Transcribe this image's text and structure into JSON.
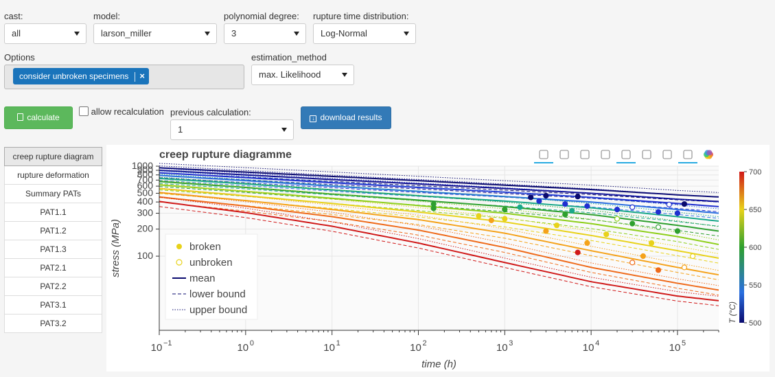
{
  "controls": {
    "cast": {
      "label": "cast:",
      "value": "all"
    },
    "model": {
      "label": "model:",
      "value": "larson_miller"
    },
    "degree": {
      "label": "polynomial degree:",
      "value": "3"
    },
    "distribution": {
      "label": "rupture time distribution:",
      "value": "Log-Normal"
    },
    "options": {
      "label": "Options",
      "chip": "consider unbroken specimens",
      "chip_remove": "×"
    },
    "estimation": {
      "label": "estimation_method",
      "value": "max. Likelihood"
    },
    "calculate_label": "calculate",
    "allow_recalc_label": "allow recalculation",
    "previous": {
      "label": "previous calculation:",
      "value": "1"
    },
    "download_label": "download results"
  },
  "tabs": [
    {
      "label": "creep rupture diagram",
      "active": true
    },
    {
      "label": "rupture deformation"
    },
    {
      "label": "Summary PATs"
    },
    {
      "label": "PAT1.1"
    },
    {
      "label": "PAT1.2"
    },
    {
      "label": "PAT1.3"
    },
    {
      "label": "PAT2.1"
    },
    {
      "label": "PAT2.2"
    },
    {
      "label": "PAT3.1"
    },
    {
      "label": "PAT3.2"
    }
  ],
  "toolbar": [
    "pan-icon",
    "box-zoom-icon",
    "box-select-icon",
    "lasso-icon",
    "tap-icon",
    "reset-icon",
    "save-icon",
    "hover-icon",
    "bokeh-logo-icon"
  ],
  "chart_data": {
    "type": "line",
    "title": "creep rupture diagramme",
    "xlabel": "time (h)",
    "ylabel": "stress (MPa)",
    "xscale": "log",
    "yscale": "log",
    "xlim": [
      0.1,
      300000
    ],
    "ylim": [
      15,
      1000
    ],
    "x_ticks": [
      "10^−1",
      "10^0",
      "10^1",
      "10^2",
      "10^3",
      "10^4",
      "10^5"
    ],
    "y_ticks": [
      "1000",
      "900",
      "800",
      "700",
      "600",
      "500",
      "400",
      "300",
      "200",
      "100"
    ],
    "grid": true,
    "legend_position": "bottom-left",
    "legend": [
      {
        "label": "broken",
        "kind": "filled-circle"
      },
      {
        "label": "unbroken",
        "kind": "open-circle"
      },
      {
        "label": "mean",
        "kind": "solid-line"
      },
      {
        "label": "lower bound",
        "kind": "dashed-line"
      },
      {
        "label": "upper bound",
        "kind": "dotted-line"
      }
    ],
    "colorbar": {
      "title": "T (°C)",
      "range": [
        500,
        700
      ],
      "ticks": [
        "700",
        "650",
        "600",
        "550",
        "500"
      ]
    },
    "temperature_curves": [
      {
        "T": 500,
        "color": "#0a0a6e",
        "mean": [
          [
            0.1,
            960
          ],
          [
            1,
            860
          ],
          [
            10,
            770
          ],
          [
            100,
            690
          ],
          [
            1000,
            615
          ],
          [
            10000,
            550
          ],
          [
            100000,
            480
          ],
          [
            300000,
            455
          ]
        ]
      },
      {
        "T": 520,
        "color": "#10108f",
        "mean": [
          [
            0.1,
            900
          ],
          [
            1,
            800
          ],
          [
            10,
            710
          ],
          [
            100,
            635
          ],
          [
            1000,
            565
          ],
          [
            10000,
            500
          ],
          [
            100000,
            430
          ],
          [
            300000,
            405
          ]
        ]
      },
      {
        "T": 540,
        "color": "#1f2fd0",
        "mean": [
          [
            0.1,
            845
          ],
          [
            1,
            745
          ],
          [
            10,
            655
          ],
          [
            100,
            580
          ],
          [
            1000,
            515
          ],
          [
            10000,
            450
          ],
          [
            100000,
            385
          ],
          [
            300000,
            355
          ]
        ]
      },
      {
        "T": 560,
        "color": "#2a6fe0",
        "mean": [
          [
            0.1,
            790
          ],
          [
            1,
            690
          ],
          [
            10,
            600
          ],
          [
            100,
            525
          ],
          [
            1000,
            460
          ],
          [
            10000,
            400
          ],
          [
            100000,
            330
          ],
          [
            300000,
            300
          ]
        ]
      },
      {
        "T": 580,
        "color": "#1aa88a",
        "mean": [
          [
            0.1,
            730
          ],
          [
            1,
            635
          ],
          [
            10,
            545
          ],
          [
            100,
            470
          ],
          [
            1000,
            410
          ],
          [
            10000,
            345
          ],
          [
            100000,
            275
          ],
          [
            300000,
            245
          ]
        ]
      },
      {
        "T": 600,
        "color": "#2ea02e",
        "mean": [
          [
            0.1,
            675
          ],
          [
            1,
            580
          ],
          [
            10,
            490
          ],
          [
            100,
            420
          ],
          [
            1000,
            355
          ],
          [
            10000,
            290
          ],
          [
            100000,
            220
          ],
          [
            300000,
            190
          ]
        ]
      },
      {
        "T": 620,
        "color": "#8ecf1a",
        "mean": [
          [
            0.1,
            620
          ],
          [
            1,
            525
          ],
          [
            10,
            440
          ],
          [
            100,
            365
          ],
          [
            1000,
            300
          ],
          [
            10000,
            230
          ],
          [
            100000,
            165
          ],
          [
            300000,
            135
          ]
        ]
      },
      {
        "T": 640,
        "color": "#e8d21a",
        "mean": [
          [
            0.1,
            565
          ],
          [
            1,
            470
          ],
          [
            10,
            385
          ],
          [
            100,
            310
          ],
          [
            1000,
            240
          ],
          [
            10000,
            170
          ],
          [
            100000,
            115
          ],
          [
            300000,
            95
          ]
        ]
      },
      {
        "T": 660,
        "color": "#f5a21a",
        "mean": [
          [
            0.1,
            510
          ],
          [
            1,
            415
          ],
          [
            10,
            330
          ],
          [
            100,
            255
          ],
          [
            1000,
            180
          ],
          [
            10000,
            115
          ],
          [
            100000,
            75
          ],
          [
            300000,
            62
          ]
        ]
      },
      {
        "T": 680,
        "color": "#ef6a1a",
        "mean": [
          [
            0.1,
            455
          ],
          [
            1,
            360
          ],
          [
            10,
            275
          ],
          [
            100,
            195
          ],
          [
            1000,
            125
          ],
          [
            10000,
            75
          ],
          [
            100000,
            50
          ],
          [
            300000,
            42
          ]
        ]
      },
      {
        "T": 700,
        "color": "#d01818",
        "mean": [
          [
            0.1,
            405
          ],
          [
            1,
            305
          ],
          [
            10,
            215
          ],
          [
            100,
            140
          ],
          [
            1000,
            85
          ],
          [
            10000,
            52
          ],
          [
            100000,
            36
          ],
          [
            300000,
            32
          ]
        ]
      }
    ],
    "points": [
      {
        "t": 2000,
        "s": 450,
        "T": 500,
        "broken": true
      },
      {
        "t": 3000,
        "s": 470,
        "T": 500,
        "broken": true
      },
      {
        "t": 7000,
        "s": 460,
        "T": 500,
        "broken": true
      },
      {
        "t": 120000,
        "s": 380,
        "T": 500,
        "broken": true
      },
      {
        "t": 2500,
        "s": 410,
        "T": 540,
        "broken": true
      },
      {
        "t": 5000,
        "s": 380,
        "T": 540,
        "broken": true
      },
      {
        "t": 9000,
        "s": 360,
        "T": 540,
        "broken": true
      },
      {
        "t": 20000,
        "s": 330,
        "T": 540,
        "broken": true
      },
      {
        "t": 60000,
        "s": 310,
        "T": 540,
        "broken": true
      },
      {
        "t": 100000,
        "s": 300,
        "T": 540,
        "broken": true
      },
      {
        "t": 30000,
        "s": 350,
        "T": 540,
        "broken": false
      },
      {
        "t": 80000,
        "s": 375,
        "T": 540,
        "broken": false
      },
      {
        "t": 1500,
        "s": 350,
        "T": 580,
        "broken": true
      },
      {
        "t": 6000,
        "s": 320,
        "T": 580,
        "broken": true
      },
      {
        "t": 150,
        "s": 380,
        "T": 600,
        "broken": true
      },
      {
        "t": 150,
        "s": 340,
        "T": 600,
        "broken": true
      },
      {
        "t": 1000,
        "s": 330,
        "T": 600,
        "broken": true
      },
      {
        "t": 5000,
        "s": 290,
        "T": 600,
        "broken": true
      },
      {
        "t": 30000,
        "s": 230,
        "T": 600,
        "broken": true
      },
      {
        "t": 100000,
        "s": 190,
        "T": 600,
        "broken": true
      },
      {
        "t": 60000,
        "s": 210,
        "T": 600,
        "broken": false
      },
      {
        "t": 20000,
        "s": 260,
        "T": 620,
        "broken": false
      },
      {
        "t": 500,
        "s": 280,
        "T": 640,
        "broken": true
      },
      {
        "t": 1000,
        "s": 260,
        "T": 640,
        "broken": true
      },
      {
        "t": 4000,
        "s": 220,
        "T": 640,
        "broken": true
      },
      {
        "t": 15000,
        "s": 175,
        "T": 640,
        "broken": true
      },
      {
        "t": 50000,
        "s": 140,
        "T": 640,
        "broken": true
      },
      {
        "t": 150000,
        "s": 100,
        "T": 640,
        "broken": false
      },
      {
        "t": 700,
        "s": 250,
        "T": 660,
        "broken": true
      },
      {
        "t": 3000,
        "s": 190,
        "T": 660,
        "broken": true
      },
      {
        "t": 9000,
        "s": 140,
        "T": 660,
        "broken": true
      },
      {
        "t": 40000,
        "s": 100,
        "T": 660,
        "broken": true
      },
      {
        "t": 120000,
        "s": 75,
        "T": 660,
        "broken": false
      },
      {
        "t": 30000,
        "s": 85,
        "T": 680,
        "broken": false
      },
      {
        "t": 60000,
        "s": 70,
        "T": 680,
        "broken": true
      },
      {
        "t": 7000,
        "s": 110,
        "T": 700,
        "broken": true
      }
    ]
  }
}
